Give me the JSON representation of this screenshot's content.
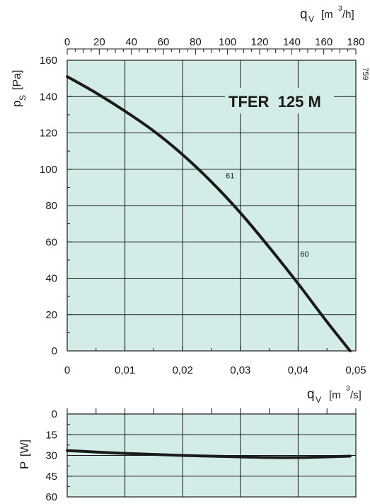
{
  "chart_data": [
    {
      "type": "line",
      "title": "TFER  125 M",
      "x_top": {
        "symbol": "q",
        "subscript": "V",
        "unit_pre": "[m",
        "unit_sup": "3",
        "unit_post": "/h]",
        "ticks": [
          "0",
          "20",
          "40",
          "60",
          "80",
          "100",
          "120",
          "140",
          "160",
          "180"
        ],
        "range": [
          0,
          180
        ]
      },
      "x_bottom": {
        "symbol": "q",
        "subscript": "V",
        "unit_pre": "[m",
        "unit_sup": "3",
        "unit_post": "/s]",
        "ticks": [
          "0",
          "0,01",
          "0,02",
          "0,03",
          "0,04",
          "0,05"
        ],
        "range": [
          0,
          0.05
        ]
      },
      "y": {
        "symbol": "p",
        "subscript": "S",
        "unit": "[Pa]",
        "ticks": [
          "0",
          "20",
          "40",
          "60",
          "80",
          "100",
          "120",
          "140",
          "160"
        ],
        "range": [
          0,
          160
        ]
      },
      "grid": true,
      "corner_note": "759",
      "curve_labels": [
        {
          "text": "61",
          "x": 0.0282,
          "y": 95
        },
        {
          "text": "60",
          "x": 0.0411,
          "y": 52
        }
      ],
      "series": [
        {
          "x": [
            0,
            0.005,
            0.01,
            0.015,
            0.02,
            0.025,
            0.03,
            0.035,
            0.04,
            0.045,
            0.049
          ],
          "y": [
            151,
            142,
            132,
            121,
            108,
            93,
            76,
            57,
            37,
            16,
            0
          ]
        }
      ]
    },
    {
      "type": "line",
      "y": {
        "symbol": "P",
        "unit": "[W]",
        "ticks": [
          "0",
          "15",
          "30",
          "45",
          "60"
        ],
        "range": [
          0,
          60
        ],
        "inverted": true
      },
      "x_range": [
        0,
        0.05
      ],
      "grid": true,
      "series": [
        {
          "x": [
            0,
            0.01,
            0.02,
            0.03,
            0.035,
            0.04,
            0.045,
            0.049
          ],
          "y": [
            26.5,
            28.5,
            30,
            31,
            31.5,
            31.5,
            31,
            30.5
          ]
        }
      ]
    }
  ],
  "colors": {
    "plot_bg": "#d4ece8",
    "grid": "#1a1a1a",
    "curve": "#1a1a1a",
    "text": "#1a1a1a"
  }
}
